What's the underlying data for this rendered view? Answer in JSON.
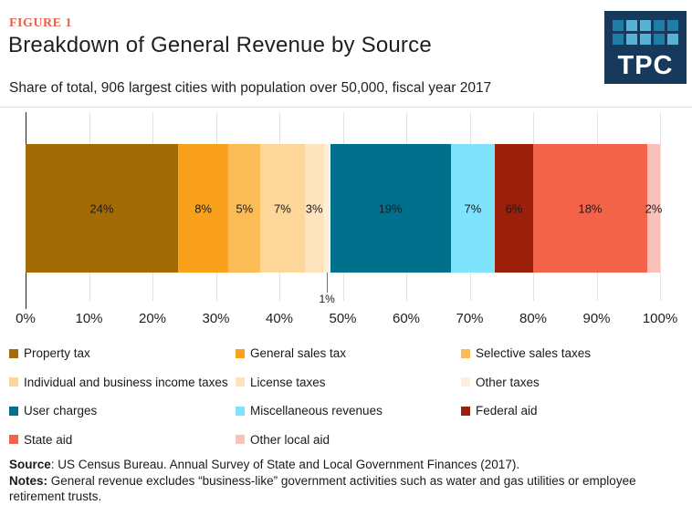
{
  "header": {
    "figure_label": "FIGURE 1",
    "title": "Breakdown of General Revenue by Source",
    "subtitle": "Share of total, 906 largest cities with population over 50,000, fiscal year 2017",
    "logo_text": "TPC"
  },
  "colors": {
    "figure_label": "#E9604C",
    "logo_background": "#17395C",
    "logo_square_dark": "#1E7EA7",
    "logo_square_light": "#58B2D3",
    "axis_line": "#222222",
    "gridline": "#E3E3E3"
  },
  "logo_grid_pattern": [
    [
      "dark",
      "light",
      "light",
      "dark",
      "dark"
    ],
    [
      "dark",
      "light",
      "light",
      "dark",
      "light"
    ]
  ],
  "chart_data": {
    "type": "bar",
    "orientation": "horizontal-stacked",
    "title": "Breakdown of General Revenue by Source",
    "subtitle": "Share of total, 906 largest cities with population over 50,000, fiscal year 2017",
    "unit": "percent of total general revenue",
    "xlim": [
      0,
      100
    ],
    "x_ticks": [
      "0%",
      "10%",
      "20%",
      "30%",
      "40%",
      "50%",
      "60%",
      "70%",
      "80%",
      "90%",
      "100%"
    ],
    "grid": true,
    "legend_position": "bottom",
    "series": [
      {
        "name": "Property tax",
        "value": 24,
        "label": "24%",
        "color": "#A26B05"
      },
      {
        "name": "General sales tax",
        "value": 8,
        "label": "8%",
        "color": "#F9A11B"
      },
      {
        "name": "Selective sales taxes",
        "value": 5,
        "label": "5%",
        "color": "#FBBC55"
      },
      {
        "name": "Individual and business income taxes",
        "value": 7,
        "label": "7%",
        "color": "#FDD79A"
      },
      {
        "name": "License taxes",
        "value": 3,
        "label": "3%",
        "color": "#FDE4BE"
      },
      {
        "name": "Other taxes",
        "value": 1,
        "label": "1%",
        "color": "#FCF0DC",
        "label_outside": true
      },
      {
        "name": "User charges",
        "value": 19,
        "label": "19%",
        "color": "#00708D"
      },
      {
        "name": "Miscellaneous revenues",
        "value": 7,
        "label": "7%",
        "color": "#80E3FE"
      },
      {
        "name": "Federal aid",
        "value": 6,
        "label": "6%",
        "color": "#9A200C"
      },
      {
        "name": "State aid",
        "value": 18,
        "label": "18%",
        "color": "#F2634A"
      },
      {
        "name": "Other local aid",
        "value": 2,
        "label": "2%",
        "color": "#F9C2B9"
      }
    ]
  },
  "footer": {
    "source_label": "Source",
    "source_text": ": US Census Bureau. Annual Survey of State and Local Government Finances (2017).",
    "notes_label": "Notes:",
    "notes_text": " General revenue excludes “business-like” government activities such as water and gas utilities or employee retirement trusts."
  }
}
